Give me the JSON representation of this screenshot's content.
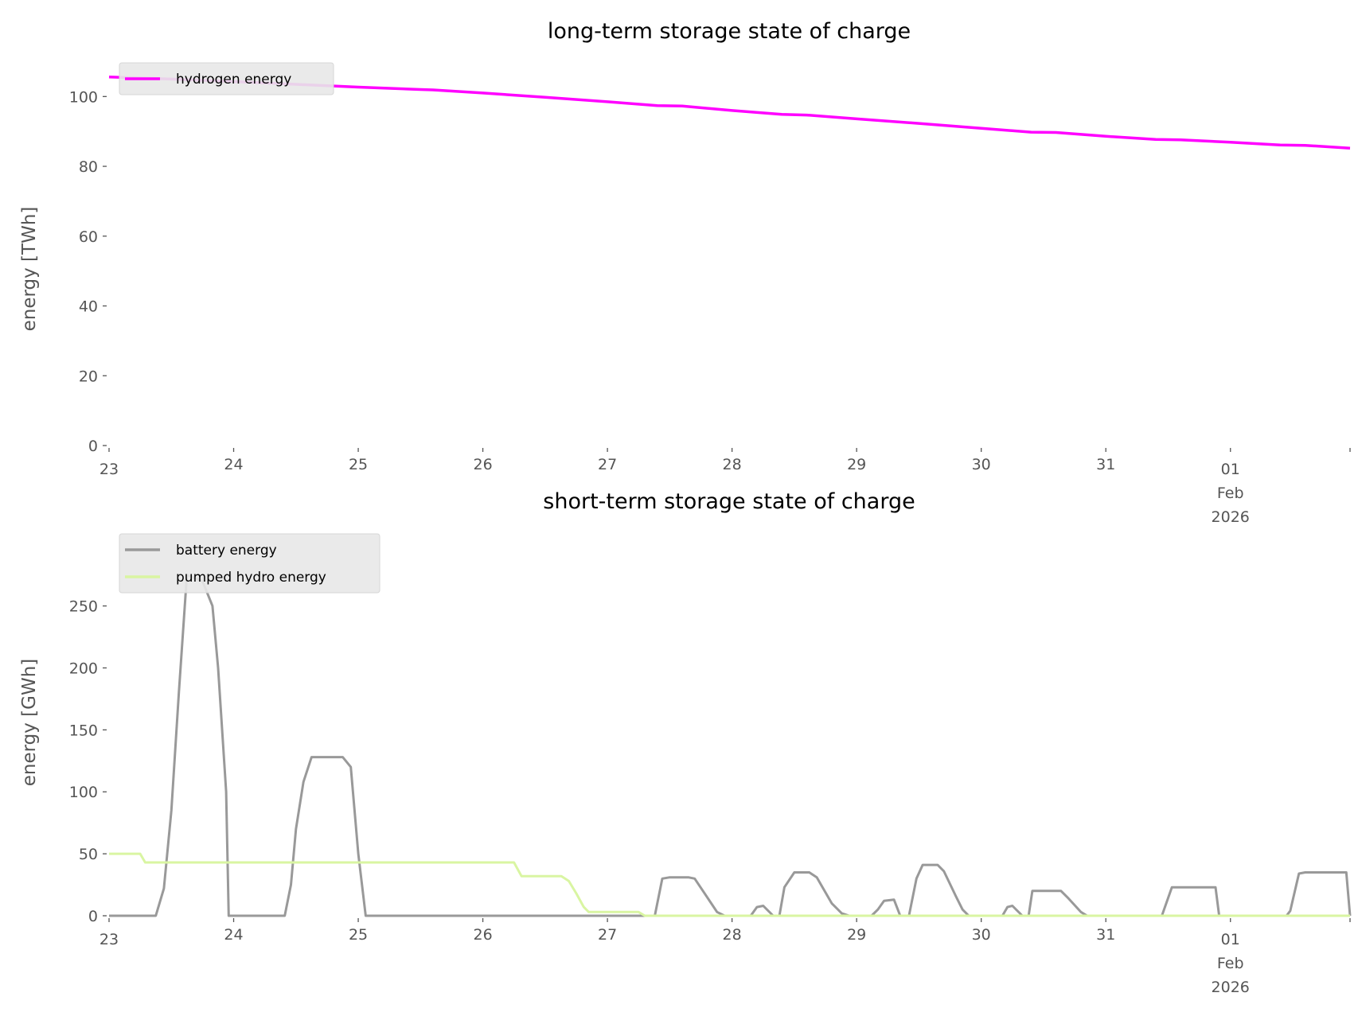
{
  "colors": {
    "hydrogen": "#ff00ff",
    "battery": "#999999",
    "pumped_hydro": "#d9f5a2",
    "text": "#555555",
    "legend_bg": "#e8e8e8"
  },
  "chart_data": [
    {
      "type": "line",
      "title": "long-term storage state of charge",
      "xlabel": "",
      "ylabel": "energy [TWh]",
      "x_unit": "days since 23 Jan 2026",
      "xlim": [
        0,
        9.96
      ],
      "ylim": [
        0,
        106
      ],
      "yticks": [
        0,
        20,
        40,
        60,
        80,
        100
      ],
      "xticks": [
        {
          "day": 0,
          "label": "23"
        },
        {
          "day": 1,
          "label": "24"
        },
        {
          "day": 2,
          "label": "25"
        },
        {
          "day": 3,
          "label": "26"
        },
        {
          "day": 4,
          "label": "27"
        },
        {
          "day": 5,
          "label": "28"
        },
        {
          "day": 6,
          "label": "29"
        },
        {
          "day": 7,
          "label": "30"
        },
        {
          "day": 8,
          "label": "31"
        },
        {
          "day": 9,
          "label": "01",
          "sub1": "Feb",
          "sub2": "2026"
        },
        {
          "day": 9.96,
          "label": ""
        }
      ],
      "legend": "upper-left",
      "grid": false,
      "series": [
        {
          "name": "hydrogen energy",
          "color_key": "hydrogen",
          "x": [
            0,
            0.5,
            1,
            1.5,
            2,
            2.5,
            2.6,
            3,
            3.5,
            4,
            4.4,
            4.6,
            5,
            5.4,
            5.6,
            6,
            6.5,
            7,
            7.4,
            7.6,
            8,
            8.4,
            8.6,
            9,
            9.4,
            9.6,
            9.96
          ],
          "y": [
            105.6,
            105,
            104.3,
            103.5,
            102.7,
            102,
            101.9,
            101,
            99.8,
            98.5,
            97.4,
            97.3,
            96,
            94.9,
            94.7,
            93.6,
            92.3,
            90.9,
            89.8,
            89.7,
            88.6,
            87.7,
            87.6,
            86.9,
            86.1,
            86.0,
            85.2
          ]
        }
      ]
    },
    {
      "type": "line",
      "title": "short-term storage state of charge",
      "xlabel": "",
      "ylabel": "energy [GWh]",
      "x_unit": "days since 23 Jan 2026",
      "xlim": [
        0,
        9.96
      ],
      "ylim": [
        0,
        278
      ],
      "yticks": [
        0,
        50,
        100,
        150,
        200,
        250
      ],
      "xticks": [
        {
          "day": 0,
          "label": "23"
        },
        {
          "day": 1,
          "label": "24"
        },
        {
          "day": 2,
          "label": "25"
        },
        {
          "day": 3,
          "label": "26"
        },
        {
          "day": 4,
          "label": "27"
        },
        {
          "day": 5,
          "label": "28"
        },
        {
          "day": 6,
          "label": "29"
        },
        {
          "day": 7,
          "label": "30"
        },
        {
          "day": 8,
          "label": "31"
        },
        {
          "day": 9,
          "label": "01",
          "sub1": "Feb",
          "sub2": "2026"
        },
        {
          "day": 9.96,
          "label": ""
        }
      ],
      "legend": "upper-left",
      "grid": false,
      "series": [
        {
          "name": "battery energy",
          "color_key": "battery",
          "x": [
            0,
            0.375,
            0.44,
            0.5,
            0.56,
            0.625,
            0.75,
            0.83,
            0.875,
            0.94,
            0.96,
            1.41,
            1.46,
            1.5,
            1.56,
            1.625,
            1.875,
            1.94,
            2.0,
            2.06,
            4.38,
            4.44,
            4.5,
            4.65,
            4.7,
            4.8,
            4.88,
            4.94,
            5.15,
            5.2,
            5.25,
            5.33,
            5.38,
            5.42,
            5.5,
            5.62,
            5.68,
            5.8,
            5.88,
            5.94,
            6.12,
            6.17,
            6.22,
            6.3,
            6.35,
            6.42,
            6.48,
            6.53,
            6.65,
            6.7,
            6.8,
            6.85,
            6.9,
            7.17,
            7.21,
            7.25,
            7.33,
            7.38,
            7.41,
            7.64,
            7.7,
            7.8,
            7.85,
            8.45,
            8.53,
            8.88,
            8.91,
            9.45,
            9.48,
            9.55,
            9.6,
            9.93,
            9.96
          ],
          "y": [
            0,
            0,
            22,
            85,
            180,
            275,
            270,
            250,
            200,
            100,
            0,
            0,
            25,
            70,
            108,
            128,
            128,
            120,
            50,
            0,
            0,
            30,
            31,
            31,
            30,
            15,
            3,
            0,
            0,
            7,
            8,
            0,
            0,
            23,
            35,
            35,
            31,
            10,
            2,
            0,
            0,
            5,
            12,
            13,
            0,
            0,
            30,
            41,
            41,
            36,
            15,
            5,
            0,
            0,
            7,
            8,
            0,
            0,
            20,
            20,
            14,
            3,
            0,
            0,
            23,
            23,
            0,
            0,
            4,
            34,
            35,
            35,
            0
          ]
        },
        {
          "name": "pumped hydro energy",
          "color_key": "pumped_hydro",
          "x": [
            0,
            0.25,
            0.29,
            3.25,
            3.31,
            3.63,
            3.69,
            3.75,
            3.81,
            3.85,
            4.25,
            4.3,
            9.96
          ],
          "y": [
            50,
            50,
            43,
            43,
            32,
            32,
            28,
            18,
            7,
            3,
            3,
            0,
            0
          ]
        }
      ]
    }
  ]
}
